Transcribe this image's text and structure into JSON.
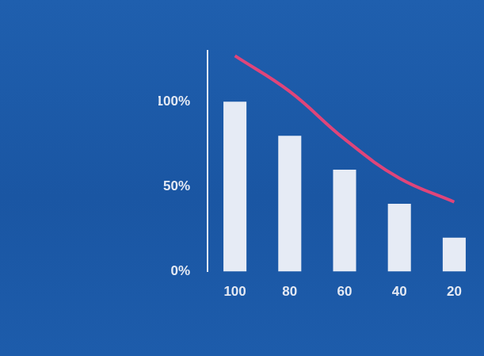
{
  "chart_data": {
    "type": "bar",
    "categories": [
      "100",
      "80",
      "60",
      "40",
      "20"
    ],
    "series": [
      {
        "type": "bar",
        "color": "#e6ebf5",
        "values": [
          100,
          80,
          60,
          40,
          20
        ]
      },
      {
        "type": "line",
        "color": "#e0457a",
        "values": [
          127,
          106,
          78,
          55,
          41
        ]
      }
    ],
    "ylim": [
      0,
      130
    ],
    "yticks": [
      {
        "value": 0,
        "label": "0%"
      },
      {
        "value": 50,
        "label": "50%"
      },
      {
        "value": 100,
        "label": "100%"
      }
    ],
    "grid": false
  }
}
